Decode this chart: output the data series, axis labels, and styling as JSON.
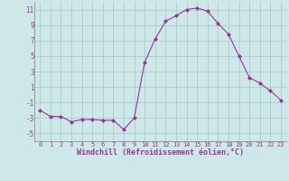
{
  "x": [
    0,
    1,
    2,
    3,
    4,
    5,
    6,
    7,
    8,
    9,
    10,
    11,
    12,
    13,
    14,
    15,
    16,
    17,
    18,
    19,
    20,
    21,
    22,
    23
  ],
  "y": [
    -2,
    -2.8,
    -2.8,
    -3.5,
    -3.2,
    -3.2,
    -3.3,
    -3.3,
    -4.5,
    -3.0,
    4.2,
    7.2,
    9.5,
    10.2,
    11.0,
    11.2,
    10.8,
    9.2,
    7.8,
    5.0,
    2.2,
    1.5,
    0.5,
    -0.7
  ],
  "line_color": "#993399",
  "marker": "D",
  "marker_size": 2,
  "bg_color": "#cce8e8",
  "grid_color": "#aacccc",
  "xlabel": "Windchill (Refroidissement éolien,°C)",
  "xlabel_color": "#993399",
  "tick_color": "#993399",
  "ylim": [
    -6,
    12
  ],
  "yticks": [
    -5,
    -3,
    -1,
    1,
    3,
    5,
    7,
    9,
    11
  ],
  "xlim": [
    -0.5,
    23.5
  ],
  "xticks": [
    0,
    1,
    2,
    3,
    4,
    5,
    6,
    7,
    8,
    9,
    10,
    11,
    12,
    13,
    14,
    15,
    16,
    17,
    18,
    19,
    20,
    21,
    22,
    23
  ]
}
